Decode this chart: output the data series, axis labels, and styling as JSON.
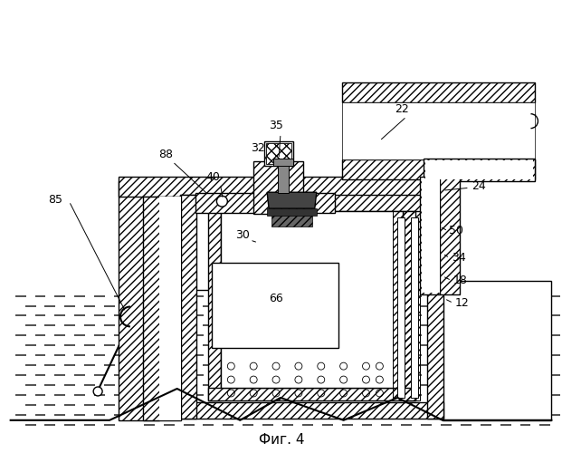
{
  "title": "Фиг. 4",
  "background_color": "#ffffff",
  "line_color": "#000000",
  "hatch_color": "#000000"
}
